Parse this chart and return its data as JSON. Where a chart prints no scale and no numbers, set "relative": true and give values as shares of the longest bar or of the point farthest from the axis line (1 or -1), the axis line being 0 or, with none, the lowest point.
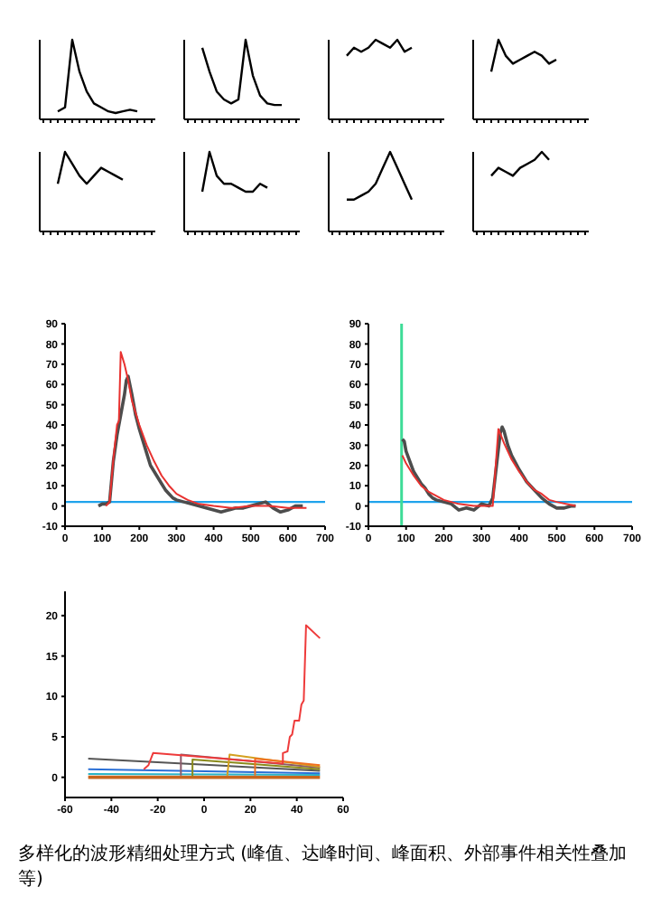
{
  "chart_data": [
    {
      "type": "line",
      "relative": true,
      "categories": [
        null,
        null,
        null,
        null,
        null,
        null,
        null,
        null,
        null,
        null,
        null,
        null,
        null,
        null,
        null,
        null
      ],
      "series": [
        {
          "color": "#000000",
          "values": [
            null,
            null,
            0.1,
            0.15,
            1,
            0.6,
            0.35,
            0.2,
            0.15,
            0.1,
            0.08,
            0.1,
            0.12,
            0.1,
            null,
            null
          ]
        }
      ]
    },
    {
      "type": "line",
      "relative": true,
      "categories": [
        null,
        null,
        null,
        null,
        null,
        null,
        null,
        null,
        null,
        null,
        null,
        null,
        null,
        null,
        null,
        null
      ],
      "series": [
        {
          "color": "#000000",
          "values": [
            null,
            null,
            0.9,
            0.6,
            0.35,
            0.25,
            0.2,
            0.25,
            1,
            0.55,
            0.3,
            0.2,
            0.18,
            0.18,
            null,
            null
          ]
        }
      ]
    },
    {
      "type": "line",
      "relative": true,
      "categories": [
        null,
        null,
        null,
        null,
        null,
        null,
        null,
        null,
        null,
        null,
        null,
        null,
        null,
        null,
        null,
        null
      ],
      "series": [
        {
          "color": "#000000",
          "values": [
            null,
            null,
            0.8,
            0.9,
            0.85,
            0.9,
            1,
            0.95,
            0.9,
            1,
            0.85,
            0.9,
            null,
            null,
            null,
            null
          ]
        }
      ]
    },
    {
      "type": "line",
      "relative": true,
      "categories": [
        null,
        null,
        null,
        null,
        null,
        null,
        null,
        null,
        null,
        null,
        null,
        null,
        null,
        null,
        null,
        null
      ],
      "series": [
        {
          "color": "#000000",
          "values": [
            null,
            null,
            0.6,
            1,
            0.8,
            0.7,
            0.75,
            0.8,
            0.85,
            0.8,
            0.7,
            0.75,
            null,
            null,
            null,
            null
          ]
        }
      ]
    },
    {
      "type": "line",
      "relative": true,
      "categories": [
        null,
        null,
        null,
        null,
        null,
        null,
        null,
        null,
        null,
        null,
        null,
        null,
        null,
        null,
        null,
        null
      ],
      "series": [
        {
          "color": "#000000",
          "values": [
            null,
            null,
            0.6,
            1,
            0.85,
            0.7,
            0.6,
            0.7,
            0.8,
            0.75,
            0.7,
            0.65,
            null,
            null,
            null,
            null
          ]
        }
      ]
    },
    {
      "type": "line",
      "relative": true,
      "categories": [
        null,
        null,
        null,
        null,
        null,
        null,
        null,
        null,
        null,
        null,
        null,
        null,
        null,
        null,
        null,
        null
      ],
      "series": [
        {
          "color": "#000000",
          "values": [
            null,
            null,
            0.5,
            1,
            0.7,
            0.6,
            0.6,
            0.55,
            0.5,
            0.5,
            0.6,
            0.55,
            null,
            null,
            null,
            null
          ]
        }
      ]
    },
    {
      "type": "line",
      "relative": true,
      "categories": [
        null,
        null,
        null,
        null,
        null,
        null,
        null,
        null,
        null,
        null,
        null,
        null,
        null,
        null,
        null,
        null
      ],
      "series": [
        {
          "color": "#000000",
          "values": [
            null,
            null,
            0.4,
            0.4,
            0.45,
            0.5,
            0.6,
            0.8,
            1,
            0.8,
            0.6,
            0.4,
            null,
            null,
            null,
            null
          ]
        }
      ]
    },
    {
      "type": "line",
      "relative": true,
      "categories": [
        null,
        null,
        null,
        null,
        null,
        null,
        null,
        null,
        null,
        null,
        null,
        null,
        null,
        null,
        null,
        null
      ],
      "series": [
        {
          "color": "#000000",
          "values": [
            null,
            null,
            0.7,
            0.8,
            0.75,
            0.7,
            0.8,
            0.85,
            0.9,
            1,
            0.9,
            null,
            null,
            null,
            null,
            null
          ]
        }
      ]
    },
    {
      "type": "line",
      "xlim": [
        0,
        700
      ],
      "xticks": [
        0,
        100,
        200,
        300,
        400,
        500,
        600,
        700
      ],
      "ylim": [
        -10,
        90
      ],
      "yticks": [
        -10,
        0,
        10,
        20,
        30,
        40,
        50,
        60,
        70,
        80,
        90
      ],
      "ref_lines": [
        {
          "axis": "y",
          "value": 2,
          "color": "#1fa3ec"
        }
      ],
      "series": [
        {
          "color": "#4d4d4d",
          "x": [
            90,
            100,
            110,
            120,
            130,
            140,
            150,
            160,
            165,
            170,
            180,
            190,
            200,
            210,
            220,
            230,
            240,
            250,
            260,
            270,
            280,
            290,
            300,
            320,
            340,
            360,
            380,
            400,
            420,
            440,
            460,
            480,
            500,
            520,
            540,
            560,
            580,
            600,
            620,
            640
          ],
          "values": [
            0,
            1,
            1,
            2,
            22,
            35,
            45,
            55,
            62,
            64,
            55,
            45,
            38,
            32,
            26,
            20,
            17,
            14,
            11,
            8,
            6,
            4,
            3,
            2,
            1,
            0,
            -1,
            -2,
            -3,
            -2,
            -1,
            -1,
            0,
            1,
            2,
            -1,
            -3,
            -2,
            0,
            0
          ]
        },
        {
          "color": "#e8312f",
          "x": [
            110,
            120,
            130,
            140,
            145,
            150,
            160,
            170,
            180,
            200,
            220,
            240,
            260,
            280,
            300,
            330,
            360,
            400,
            450,
            500,
            550,
            600,
            650
          ],
          "values": [
            0,
            2,
            23,
            40,
            42,
            76,
            70,
            62,
            52,
            40,
            30,
            22,
            15,
            10,
            6,
            3,
            1,
            0,
            -1,
            0,
            0,
            -1,
            -1
          ]
        }
      ]
    },
    {
      "type": "line",
      "xlim": [
        0,
        700
      ],
      "xticks": [
        0,
        100,
        200,
        300,
        400,
        500,
        600,
        700
      ],
      "ylim": [
        -10,
        90
      ],
      "yticks": [
        -10,
        0,
        10,
        20,
        30,
        40,
        50,
        60,
        70,
        80,
        90
      ],
      "ref_lines": [
        {
          "axis": "y",
          "value": 2,
          "color": "#1fa3ec"
        },
        {
          "axis": "x",
          "value": 88,
          "color": "#3ddc97"
        }
      ],
      "series": [
        {
          "color": "#4d4d4d",
          "x": [
            90,
            95,
            100,
            110,
            120,
            130,
            140,
            150,
            160,
            170,
            180,
            200,
            220,
            240,
            260,
            280,
            300,
            320,
            330,
            340,
            350,
            355,
            360,
            370,
            380,
            400,
            420,
            440,
            460,
            480,
            500,
            520,
            540,
            550
          ],
          "values": [
            33,
            32,
            27,
            22,
            17,
            14,
            11,
            9,
            6,
            4,
            3,
            2,
            1,
            -2,
            -1,
            -2,
            1,
            0,
            4,
            20,
            36,
            39,
            37,
            30,
            25,
            18,
            12,
            8,
            4,
            1,
            -1,
            -1,
            0,
            0
          ]
        },
        {
          "color": "#e8312f",
          "x": [
            90,
            100,
            120,
            140,
            160,
            180,
            200,
            240,
            280,
            330,
            345,
            360,
            380,
            400,
            420,
            440,
            460,
            480,
            500,
            550
          ],
          "values": [
            25,
            21,
            15,
            10,
            7,
            5,
            3,
            1,
            0,
            0,
            38,
            31,
            23,
            17,
            12,
            8,
            6,
            3,
            2,
            0
          ]
        }
      ]
    },
    {
      "type": "line",
      "xlim": [
        -60,
        60
      ],
      "xticks": [
        -60,
        -40,
        -20,
        0,
        20,
        40,
        60
      ],
      "ylim": [
        -2.5,
        23
      ],
      "yticks": [
        0,
        5,
        10,
        15,
        20
      ],
      "annotations": [
        "多样化的波形精细处理方式 (峰值、达峰时间、峰面积、外部事件相关性叠加等)"
      ],
      "series": [
        {
          "color": "#c8661e",
          "x": [
            -50,
            50
          ],
          "values": [
            0,
            0
          ]
        },
        {
          "color": "#2bb5c8",
          "x": [
            -50,
            50
          ],
          "values": [
            0.4,
            0.3
          ]
        },
        {
          "color": "#2a6fd6",
          "x": [
            -50,
            50
          ],
          "values": [
            1,
            0.5
          ]
        },
        {
          "color": "#555555",
          "x": [
            -50,
            50
          ],
          "values": [
            2.3,
            0.8
          ]
        },
        {
          "color": "#8a5a6a",
          "x": [
            -10,
            -10,
            50
          ],
          "values": [
            0.2,
            2.8,
            1.2
          ]
        },
        {
          "color": "#8a8a1a",
          "x": [
            -5,
            -5,
            50
          ],
          "values": [
            0.1,
            2.2,
            1
          ]
        },
        {
          "color": "#d4a020",
          "x": [
            10,
            11,
            50
          ],
          "values": [
            0.2,
            2.8,
            1.3
          ]
        },
        {
          "color": "#f07020",
          "x": [
            22,
            22,
            50
          ],
          "values": [
            0.2,
            2.3,
            1.5
          ]
        },
        {
          "color": "#ee3b3b",
          "x": [
            -26,
            -24,
            -22,
            34,
            34,
            36,
            37,
            38,
            39,
            41,
            42,
            43,
            44,
            50
          ],
          "values": [
            1,
            1.5,
            3,
            1.7,
            3,
            3.2,
            5,
            5.3,
            7,
            7,
            9,
            9.5,
            18.8,
            17.2
          ]
        }
      ]
    }
  ]
}
